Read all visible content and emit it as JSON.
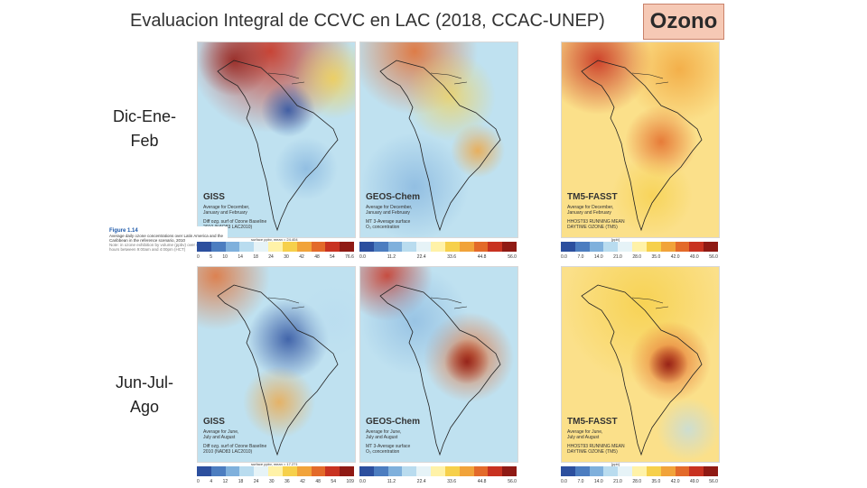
{
  "slide": {
    "title": "Evaluacion Integral de CCVC en LAC (2018, CCAC-UNEP)",
    "tag": "Ozono"
  },
  "rows": [
    {
      "label_line1": "Dic-Ene-",
      "label_line2": "Feb"
    },
    {
      "label_line1": "Jun-Jul-",
      "label_line2": "Ago"
    }
  ],
  "figure_caption": {
    "number": "Figure 1.14",
    "text": "Average daily ozone concentrations over Latin America and the Caribbean in the reference scenario, 2010",
    "note": "Note: in ozone exhibition by volume (ppbv) over seven dewpoint hours between 9:00am and 4:00pm (HCT)"
  },
  "panels": [
    {
      "model": "GISS",
      "desc": "Average for December,\nJanuary and February",
      "detail": "Diff ozg. surf of Ozone Baseline\n2010 (NAD83 LAC2010)",
      "unit": "surface ppbv, mean = 24.404",
      "ticks": [
        "0",
        "5",
        "10",
        "14",
        "18",
        "24",
        "30",
        "42",
        "48",
        "54",
        "76.6"
      ]
    },
    {
      "model": "GEOS-Chem",
      "desc": "Average for December,\nJanuary and February",
      "detail": "MT 3-Average surface\nO₃ concentration",
      "unit": "",
      "ticks": [
        "0.0",
        "11.2",
        "22.4",
        "33.6",
        "44.8",
        "56.0"
      ]
    },
    {
      "model": "TM5-FASST",
      "desc": "Average for December,\nJanuary and February",
      "detail": "HHOST93 RUNNING MEAN\nDAYTIME OZONE (TM5)",
      "unit": "[ppb]",
      "ticks": [
        "0.0",
        "7.0",
        "14.0",
        "21.0",
        "28.0",
        "35.0",
        "42.0",
        "49.0",
        "56.0"
      ]
    },
    {
      "model": "GISS",
      "desc": "Average for June,\nJuly and August",
      "detail": "Diff ozg. surf of Ozone Baseline\n2010 (NAD83 LAC2010)",
      "unit": "surface ppbv, mean = 17.271",
      "ticks": [
        "0",
        "4",
        "12",
        "18",
        "24",
        "30",
        "36",
        "42",
        "48",
        "54",
        "109"
      ]
    },
    {
      "model": "GEOS-Chem",
      "desc": "Average for June,\nJuly and August",
      "detail": "MT 3-Average surface\nO₃ concentration",
      "unit": "",
      "ticks": [
        "0.0",
        "11.2",
        "22.4",
        "33.6",
        "44.8",
        "56.0"
      ]
    },
    {
      "model": "TM5-FASST",
      "desc": "Average for June,\nJuly and August",
      "detail": "HHOST93 RUNNING MEAN\nDAYTIME OZONE (TM5)",
      "unit": "[ppb]",
      "ticks": [
        "0.0",
        "7.0",
        "14.0",
        "21.0",
        "28.0",
        "35.0",
        "42.0",
        "49.0",
        "56.0"
      ]
    }
  ],
  "colorbar_colors": [
    "#2c4f9e",
    "#4c7dc0",
    "#7fb0dc",
    "#b9dcef",
    "#e6f3f7",
    "#fff2a8",
    "#f6d04b",
    "#f1a33a",
    "#e36a2a",
    "#c83221",
    "#8f1a14"
  ]
}
